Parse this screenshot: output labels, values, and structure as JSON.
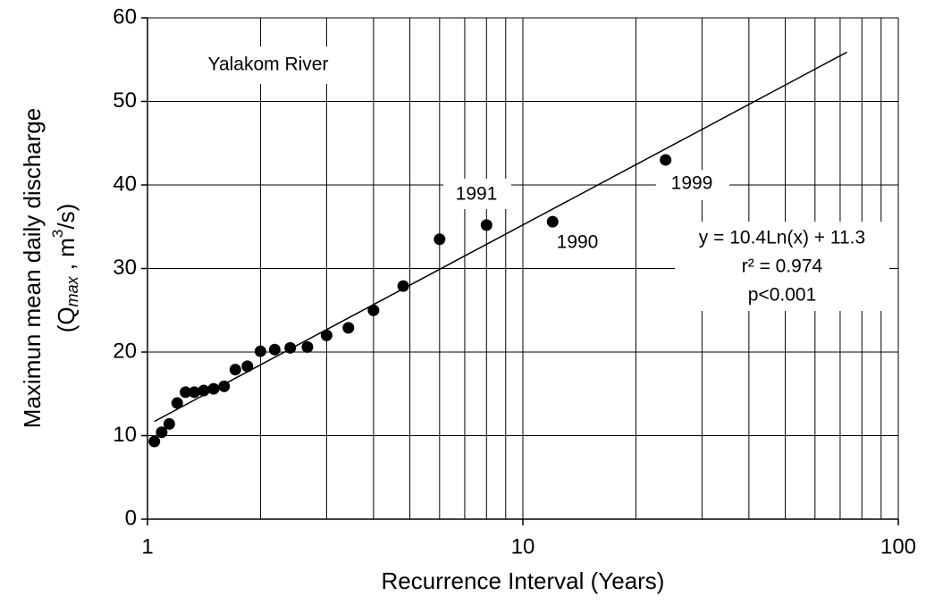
{
  "chart_data": {
    "type": "scatter",
    "xscale": "log",
    "grid": true,
    "color": "#000000",
    "xlabel": "Recurrence Interval (Years)",
    "ylabel": "Maximun mean daily discharge",
    "ylabel2": [
      "(Q",
      "max",
      " , m",
      "3",
      "/s)"
    ],
    "xlim": [
      1,
      100
    ],
    "xticks": [
      1,
      10,
      100
    ],
    "xgrid": [
      2,
      3,
      4,
      5,
      6,
      7,
      8,
      9,
      20,
      30,
      40,
      50,
      60,
      70,
      80,
      90
    ],
    "ylim": [
      0,
      60
    ],
    "yticks": [
      0,
      10,
      20,
      30,
      40,
      50,
      60
    ],
    "series": [
      {
        "name": "Yalakom River",
        "x": [
          1.043,
          1.091,
          1.143,
          1.2,
          1.263,
          1.333,
          1.412,
          1.5,
          1.6,
          1.714,
          1.846,
          2,
          2.182,
          2.4,
          2.667,
          3,
          3.429,
          4,
          4.8,
          6,
          8,
          12,
          24
        ],
        "values": [
          9.3,
          10.4,
          11.4,
          13.9,
          15.2,
          15.2,
          15.4,
          15.6,
          15.9,
          17.9,
          18.3,
          20.1,
          20.3,
          20.5,
          20.6,
          22.0,
          22.9,
          25.0,
          27.9,
          33.5,
          35.2,
          35.6,
          43.0
        ]
      },
      {
        "name": "y = 10.4Ln(x) + 11.3",
        "kind": "trendline",
        "x": [
          1.043,
          73
        ],
        "values": [
          11.7,
          55.9
        ]
      }
    ],
    "annotations": [
      "1991",
      "1990",
      "1999"
    ],
    "stats": [
      "r² = 0.974",
      "p<0.001"
    ]
  }
}
